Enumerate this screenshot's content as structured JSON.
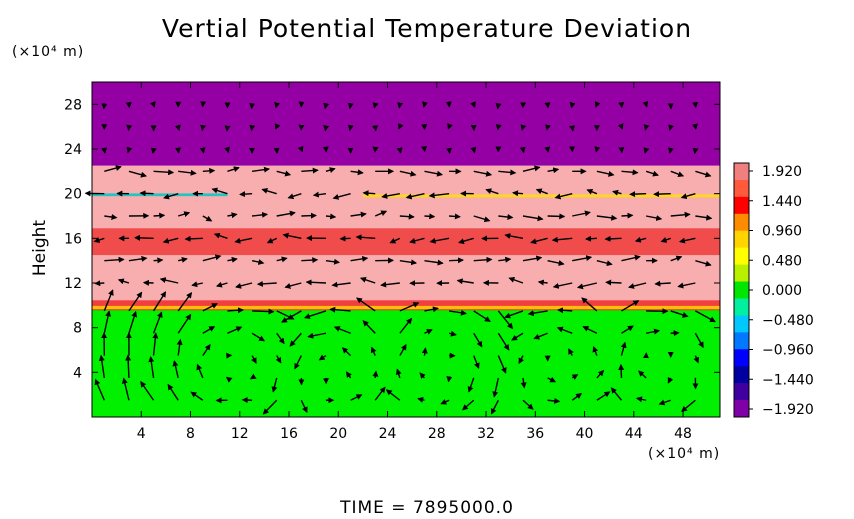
{
  "chart_data": {
    "type": "heatmap",
    "title": "Vertial Potential Temperature Deviation",
    "ylabel": "Height",
    "x_unit_label": "(×10⁴ m)",
    "y_unit_label": "(×10⁴ m)",
    "footer": "TIME  =  7895000.0",
    "xlim": [
      0,
      51
    ],
    "ylim": [
      0,
      30
    ],
    "x_ticks": [
      4,
      8,
      12,
      16,
      20,
      24,
      28,
      32,
      36,
      40,
      44,
      48
    ],
    "y_ticks": [
      4,
      8,
      12,
      16,
      20,
      24,
      28
    ],
    "colorbar": {
      "ticks": [
        "1.920",
        "1.440",
        "0.960",
        "0.480",
        "0.000",
        "−0.480",
        "−0.960",
        "−1.440",
        "−1.920"
      ],
      "colors": [
        "#f08080",
        "#ff5a3c",
        "#ff0000",
        "#ff8c00",
        "#ffd400",
        "#ffff00",
        "#b8f000",
        "#00e600",
        "#00f0a0",
        "#00c8ff",
        "#0078ff",
        "#0000ff",
        "#0000a0",
        "#4000a0",
        "#8000a8"
      ]
    },
    "bands": [
      {
        "y_from": 22.5,
        "y_to": 30,
        "value": -1.92,
        "color": "#9400a4"
      },
      {
        "y_from": 9.7,
        "y_to": 22.5,
        "value": 1.75,
        "color": "#f8aeae"
      },
      {
        "y_from": 0,
        "y_to": 9.7,
        "value": 0.3,
        "color": "#00f000"
      }
    ],
    "streaks": [
      {
        "x_from": 0,
        "x_to": 51,
        "y": 15.7,
        "thickness": 2.4,
        "color": "#ef3b3b"
      },
      {
        "x_from": 0,
        "x_to": 51,
        "y": 10.0,
        "thickness": 0.9,
        "color": "#f02a2a"
      },
      {
        "x_from": 0,
        "x_to": 51,
        "y": 9.8,
        "thickness": 0.3,
        "color": "#ffd400"
      },
      {
        "x_from": 0,
        "x_to": 11,
        "y": 19.9,
        "thickness": 0.25,
        "color": "#00c8c8"
      },
      {
        "x_from": 22,
        "x_to": 51,
        "y": 19.8,
        "thickness": 0.25,
        "color": "#ffe000"
      }
    ],
    "vector_field": {
      "x": [
        1,
        3,
        5,
        7,
        9,
        11,
        13,
        15,
        17,
        19,
        21,
        23,
        25,
        27,
        29,
        31,
        33,
        35,
        37,
        39,
        41,
        43,
        45,
        47,
        49
      ],
      "y": [
        1.5,
        3.5,
        5.5,
        7.5,
        9.5,
        12,
        14,
        16,
        18,
        20,
        22,
        24,
        26,
        28
      ],
      "lower_vortices": [
        {
          "x": 12,
          "y": 4.5,
          "radius": 4,
          "sense": "cw"
        },
        {
          "x": 20,
          "y": 3.5,
          "radius": 3,
          "sense": "ccw"
        },
        {
          "x": 28,
          "y": 4.5,
          "radius": 3,
          "sense": "cw"
        },
        {
          "x": 38,
          "y": 4.5,
          "radius": 3,
          "sense": "ccw"
        },
        {
          "x": 46,
          "y": 4.5,
          "radius": 3,
          "sense": "cw"
        }
      ]
    }
  }
}
